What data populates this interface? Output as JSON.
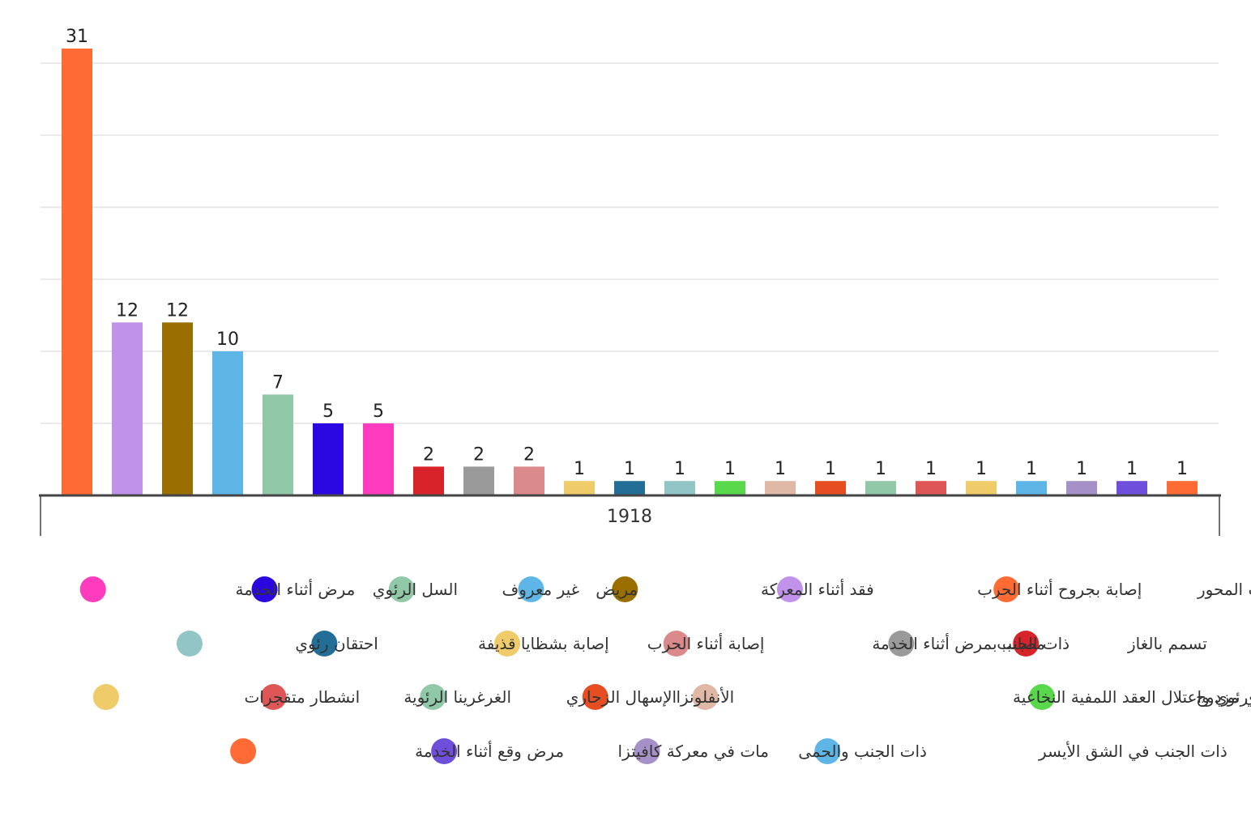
{
  "chart_data": {
    "type": "bar",
    "categories": [
      "1918"
    ],
    "ylim": [
      0,
      31
    ],
    "grid": true,
    "legend_position": "bottom",
    "series": [
      {
        "name": "قتل على يد قوات المحور",
        "value": 31,
        "color": "#FF6B35"
      },
      {
        "name": "إصابة بجروح أثناء الحرب",
        "value": 12,
        "color": "#C092EA"
      },
      {
        "name": "فقد أثناء المعركة",
        "value": 12,
        "color": "#9A6F00"
      },
      {
        "name": "مريض",
        "value": 10,
        "color": "#5EB6E6"
      },
      {
        "name": "غير معروف",
        "value": 7,
        "color": "#90C8A8"
      },
      {
        "name": "السل الرئوي",
        "value": 5,
        "color": "#2A06E0"
      },
      {
        "name": "مرض أثناء الخدمة",
        "value": 5,
        "color": "#FF3CBE"
      },
      {
        "name": "تسمم بالغاز",
        "value": 2,
        "color": "#D8232A"
      },
      {
        "name": "ذات الجنب",
        "value": 2,
        "color": "#9A9A9A"
      },
      {
        "name": "مصاب بمرض أثناء الخدمة",
        "value": 2,
        "color": "#DA8A8A"
      },
      {
        "name": "إصابة أثناء الحرب",
        "value": 1,
        "color": "#F0CB6A"
      },
      {
        "name": "إصابة بشظايا قذيفة",
        "value": 1,
        "color": "#236E96"
      },
      {
        "name": "احتقان رئوي",
        "value": 1,
        "color": "#92C6C6"
      },
      {
        "name": "احتقان رئوي مزدوج",
        "value": 1,
        "color": "#5AD84C"
      },
      {
        "name": "احتقان رئوي واعتلال العقد اللمفية النخاعية",
        "value": 1,
        "color": "#E0B8A6"
      },
      {
        "name": "الأنفلونزا",
        "value": 1,
        "color": "#E64E22"
      },
      {
        "name": "الإسهال الزحاري",
        "value": 1,
        "color": "#90C8A8"
      },
      {
        "name": "الغرغرينا الرئوية",
        "value": 1,
        "color": "#DE5656"
      },
      {
        "name": "انشطار متفجرات",
        "value": 1,
        "color": "#F0CB6A"
      },
      {
        "name": "ذات الجنب في الشق الأيسر",
        "value": 1,
        "color": "#5EB6E6"
      },
      {
        "name": "ذات الجنب والحمى",
        "value": 1,
        "color": "#A690C8"
      },
      {
        "name": "مات في معركة كافيتزا",
        "value": 1,
        "color": "#6E4EDA"
      },
      {
        "name": "مرض وقع أثناء الخدمة",
        "value": 1,
        "color": "#FF6B35"
      }
    ]
  }
}
